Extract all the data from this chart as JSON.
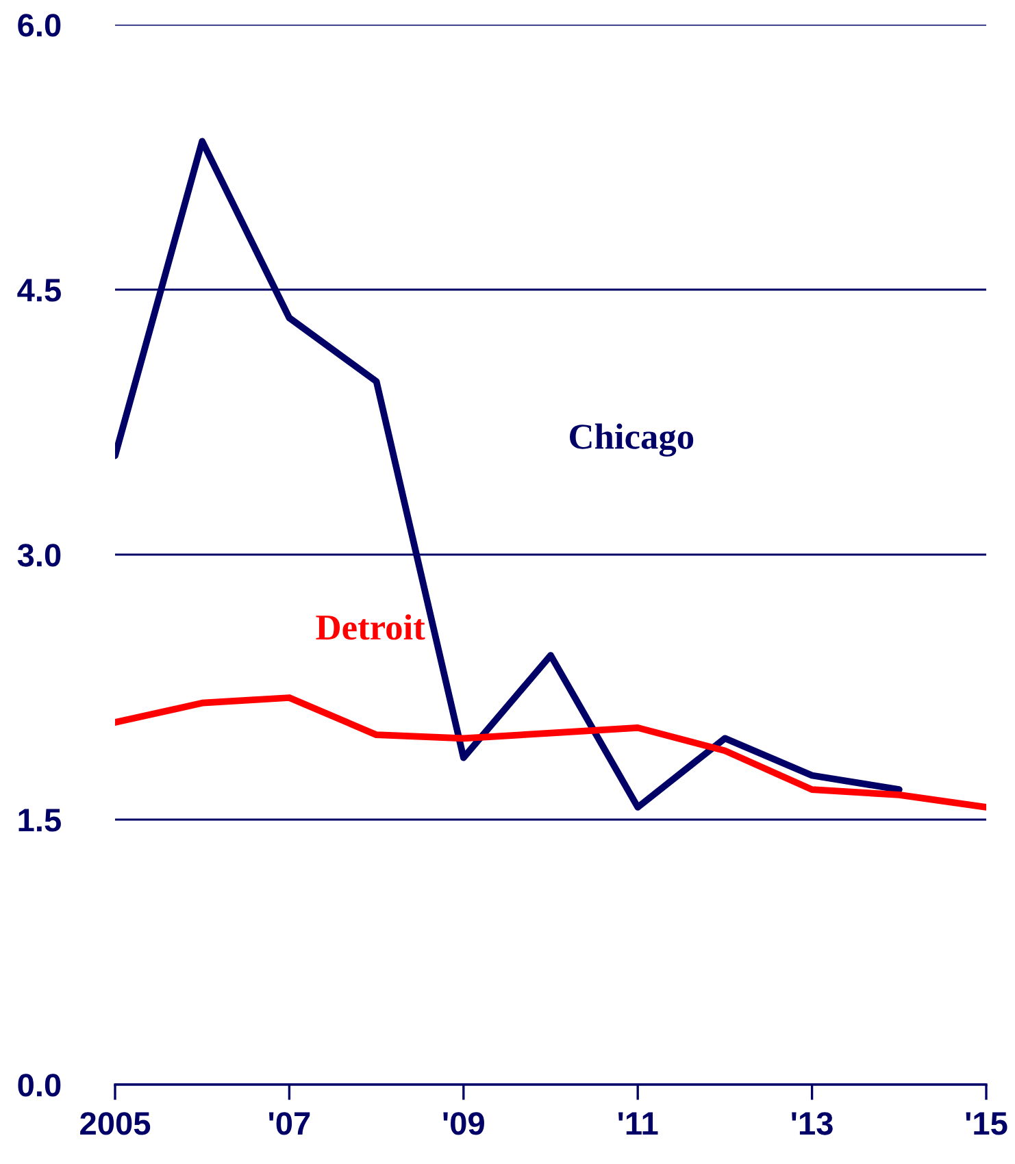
{
  "chart_data": {
    "type": "line",
    "x": [
      2005,
      2006,
      2007,
      2008,
      2009,
      2010,
      2011,
      2012,
      2013,
      2014,
      2015
    ],
    "series": [
      {
        "name": "Chicago",
        "color": "#000066",
        "values": [
          3.56,
          5.34,
          4.34,
          3.98,
          1.85,
          2.43,
          1.57,
          1.96,
          1.75,
          1.67,
          null
        ]
      },
      {
        "name": "Detroit",
        "color": "#ff0000",
        "values": [
          2.05,
          2.16,
          2.19,
          1.98,
          1.96,
          1.99,
          2.02,
          1.89,
          1.67,
          1.64,
          1.57
        ]
      }
    ],
    "xlim": [
      2005,
      2015
    ],
    "xticks": [
      {
        "value": 2005,
        "label": "2005"
      },
      {
        "value": 2007,
        "label": "'07"
      },
      {
        "value": 2009,
        "label": "'09"
      },
      {
        "value": 2011,
        "label": "'11"
      },
      {
        "value": 2013,
        "label": "'13"
      },
      {
        "value": 2015,
        "label": "'15"
      }
    ],
    "ylim": [
      0,
      6
    ],
    "yticks": [
      {
        "value": 0,
        "label": "0.0"
      },
      {
        "value": 1.5,
        "label": "1.5"
      },
      {
        "value": 3,
        "label": "3.0"
      },
      {
        "value": 4.5,
        "label": "4.5"
      },
      {
        "value": 6,
        "label": "6.0"
      }
    ],
    "grid": "y",
    "line_style": "solid",
    "legend": false
  }
}
